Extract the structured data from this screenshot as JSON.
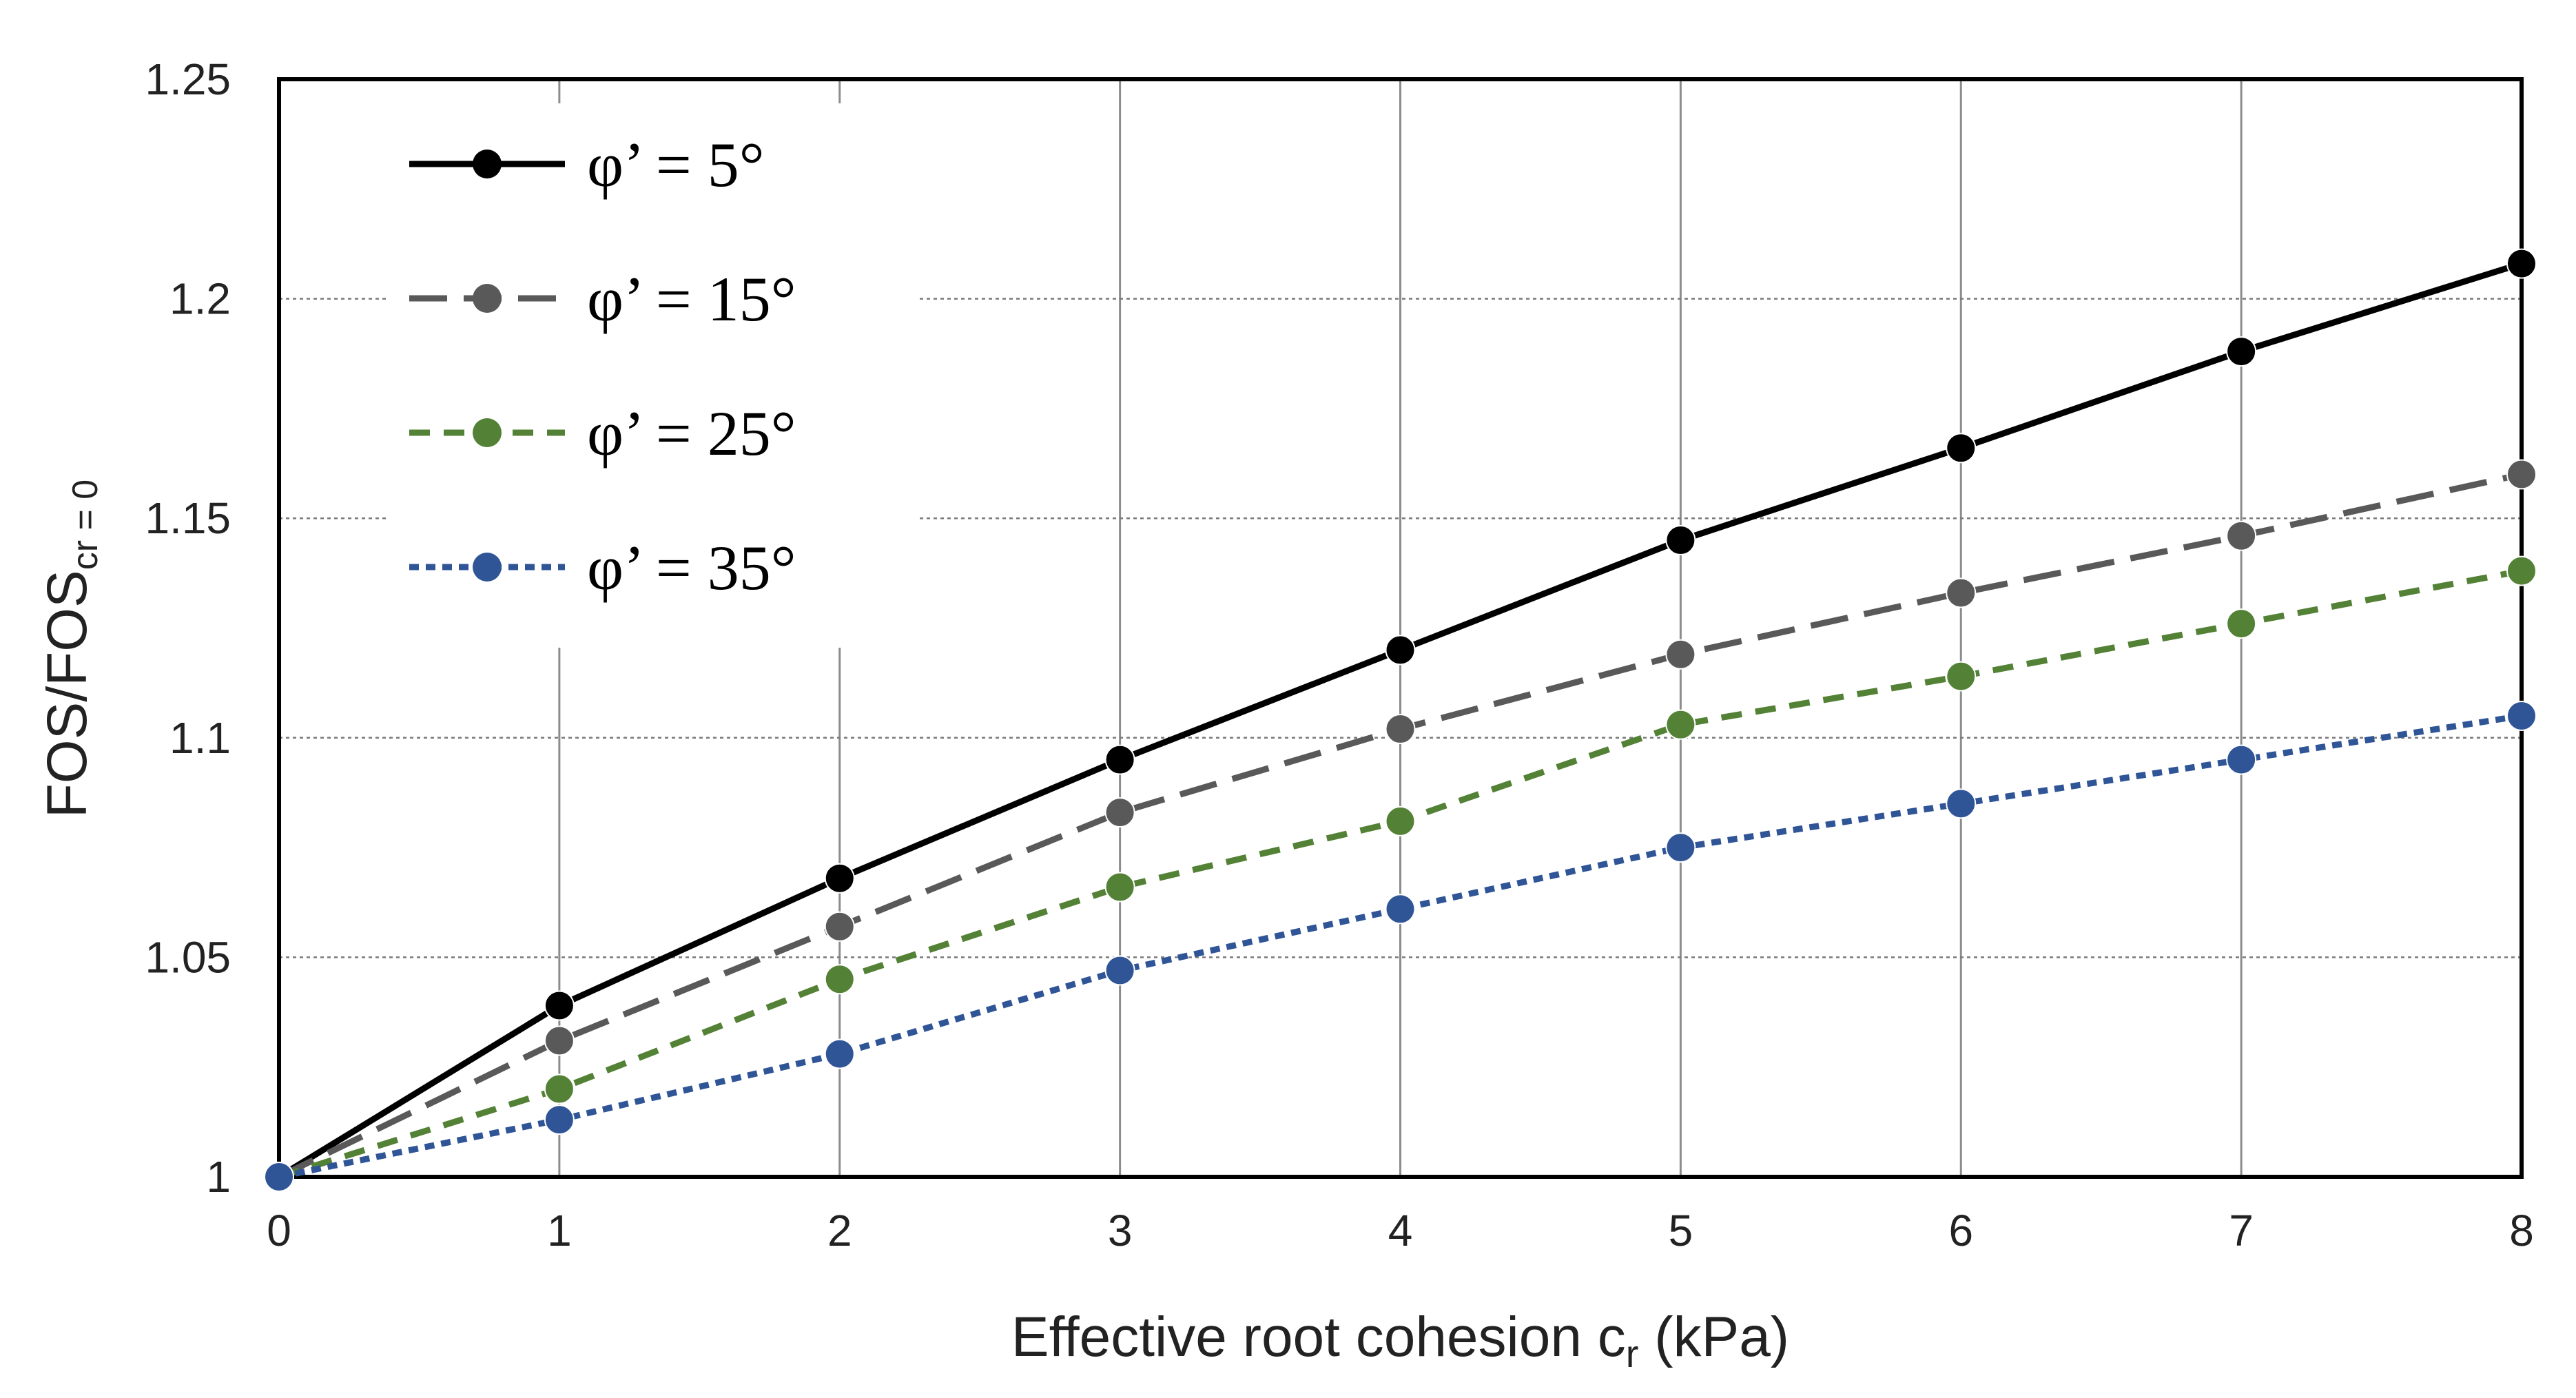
{
  "chart_data": {
    "type": "line",
    "x": [
      0,
      1,
      2,
      3,
      4,
      5,
      6,
      7,
      8
    ],
    "xlim": [
      0,
      8
    ],
    "ylim": [
      1,
      1.25
    ],
    "x_ticks": [
      "0",
      "1",
      "2",
      "3",
      "4",
      "5",
      "6",
      "7",
      "8"
    ],
    "y_ticks": [
      "1",
      "1.05",
      "1.1",
      "1.15",
      "1.2",
      "1.25"
    ],
    "xlabel": {
      "main": "Effective root cohesion c",
      "sub": "r",
      "suffix": " (kPa)"
    },
    "ylabel": {
      "main": "FOS/FOS",
      "sub": "cr = 0"
    },
    "grid": true,
    "legend_position": "top-left",
    "series": [
      {
        "name": "φ’ = 5°",
        "color": "#000000",
        "line_style": "solid",
        "values": [
          1.0,
          1.039,
          1.068,
          1.095,
          1.12,
          1.145,
          1.166,
          1.188,
          1.208
        ]
      },
      {
        "name": "φ’ = 15°",
        "color": "#595959",
        "line_style": "long-dash",
        "values": [
          1.0,
          1.031,
          1.057,
          1.083,
          1.102,
          1.119,
          1.133,
          1.146,
          1.16
        ]
      },
      {
        "name": "φ’ = 25°",
        "color": "#538135",
        "line_style": "dash",
        "values": [
          1.0,
          1.02,
          1.045,
          1.066,
          1.081,
          1.103,
          1.114,
          1.126,
          1.138
        ]
      },
      {
        "name": "φ’ = 35°",
        "color": "#2F5597",
        "line_style": "dot",
        "values": [
          1.0,
          1.013,
          1.028,
          1.047,
          1.061,
          1.075,
          1.085,
          1.095,
          1.105
        ]
      }
    ]
  }
}
